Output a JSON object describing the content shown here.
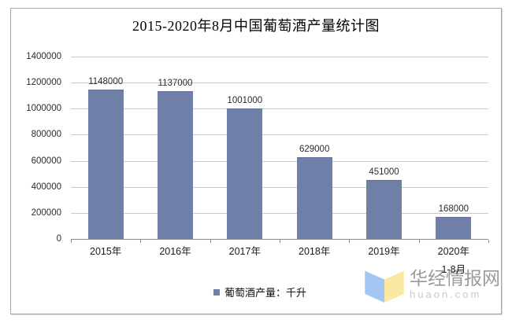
{
  "chart_data": {
    "type": "bar",
    "title": "2015-2020年8月中国葡萄酒产量统计图",
    "categories": [
      {
        "label": "2015年",
        "sublabel": ""
      },
      {
        "label": "2016年",
        "sublabel": ""
      },
      {
        "label": "2017年",
        "sublabel": ""
      },
      {
        "label": "2018年",
        "sublabel": ""
      },
      {
        "label": "2019年",
        "sublabel": ""
      },
      {
        "label": "2020年",
        "sublabel": "1-8月"
      }
    ],
    "values": [
      1148000,
      1137000,
      1001000,
      629000,
      451000,
      168000
    ],
    "data_labels": [
      "1148000",
      "1137000",
      "1001000",
      "629000",
      "451000",
      "168000"
    ],
    "xlabel": "",
    "ylabel": "",
    "ylim": [
      0,
      1400000
    ],
    "ytick_step": 200000,
    "yticks": [
      1400000,
      1200000,
      1000000,
      800000,
      600000,
      400000,
      200000,
      0
    ],
    "grid": true,
    "legend": {
      "label": "葡萄酒产量：千升",
      "position": "bottom-center",
      "marker_color": "#6f7fa8"
    },
    "bar_color": "#6f7fa8"
  },
  "watermark": {
    "site_name": "华经情报网",
    "site_domain": "huaon.com",
    "logo_left_color": "#a3c6f3",
    "logo_right_color": "#fae9a3"
  },
  "colors": {
    "bar": "#6f7fa8",
    "bar_border": "#62729b",
    "gridline": "#c9c9c9",
    "axis": "#8a8a8a",
    "frame_border": "#a6a6a6",
    "label_text": "#2b2b2b",
    "title_text": "#000000",
    "watermark_text": "#9a9a9a",
    "watermark_domain_text": "#c9c9c9"
  }
}
